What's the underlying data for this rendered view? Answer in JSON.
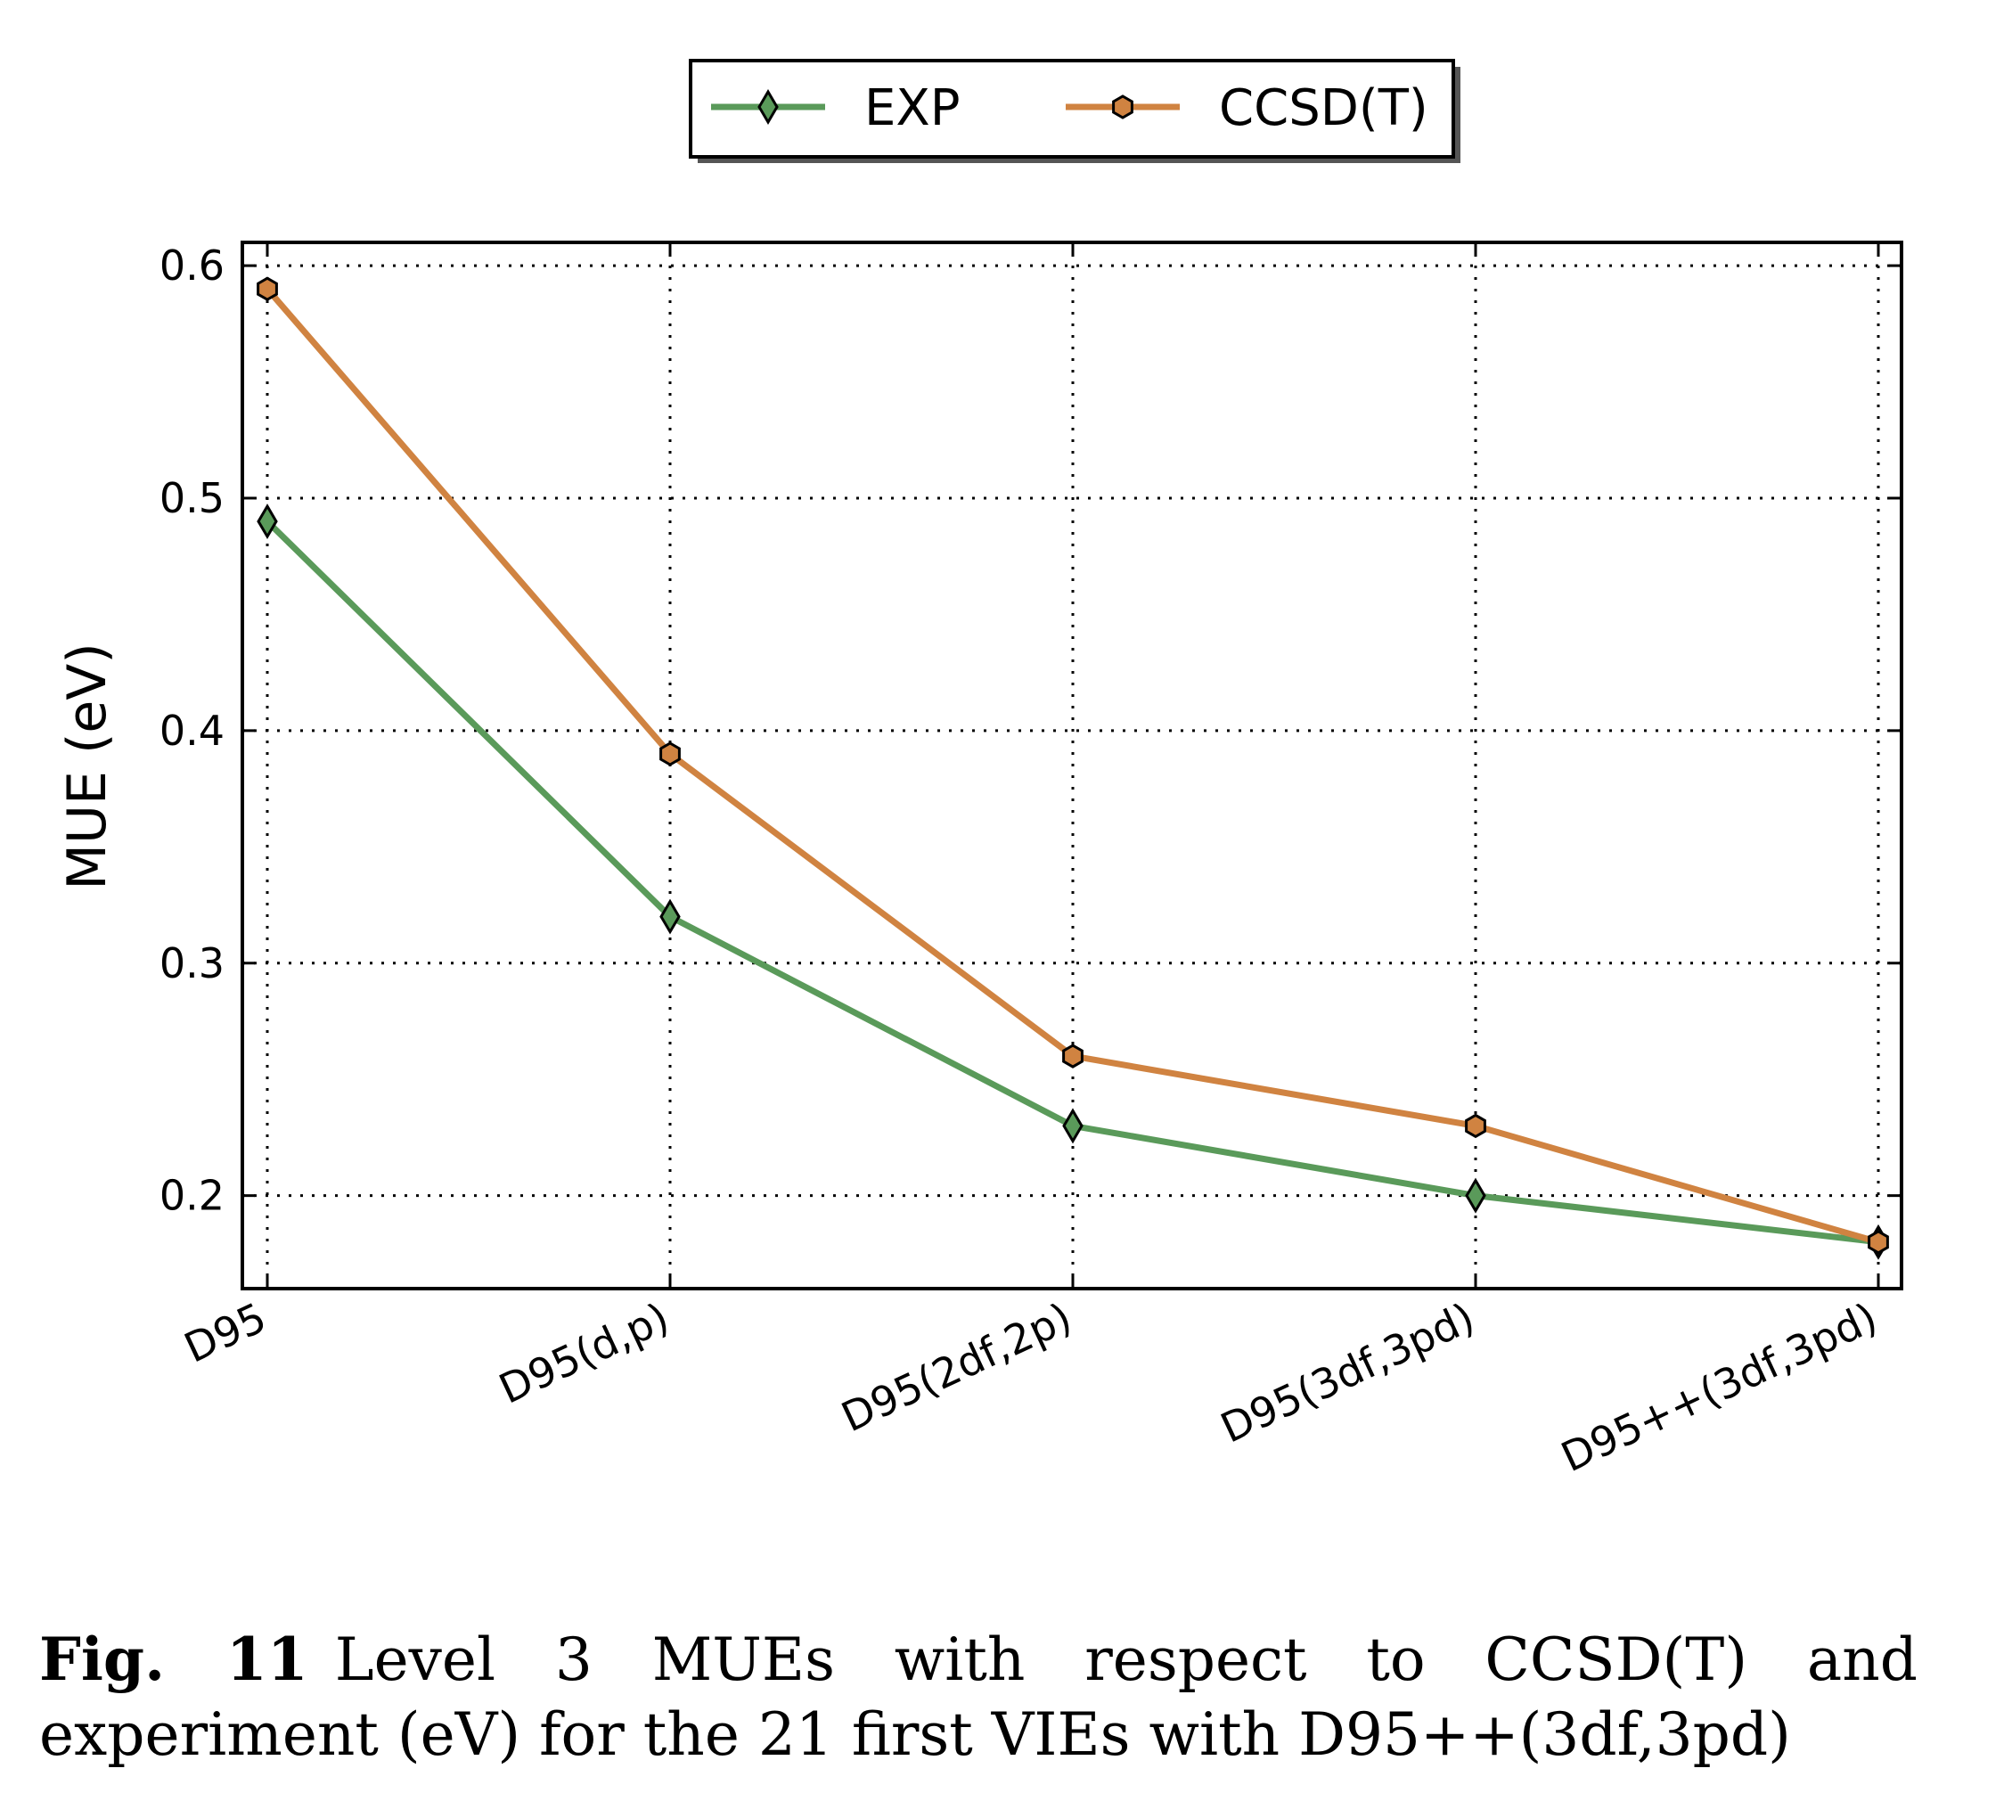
{
  "chart_data": {
    "type": "line",
    "categories": [
      "D95",
      "D95(d,p)",
      "D95(2df,2p)",
      "D95(3df,3pd)",
      "D95++(3df,3pd)"
    ],
    "series": [
      {
        "name": "EXP",
        "values": [
          0.49,
          0.32,
          0.23,
          0.2,
          0.18
        ],
        "color": "#5a9a5a",
        "marker": "diamond"
      },
      {
        "name": "CCSD(T)",
        "values": [
          0.59,
          0.39,
          0.26,
          0.23,
          0.18
        ],
        "color": "#d08341",
        "marker": "hexagon"
      }
    ],
    "ylabel": "MUE (eV)",
    "xlabel": "",
    "ylim": [
      0.16,
      0.61
    ],
    "yticks": [
      "0.2",
      "0.3",
      "0.4",
      "0.5",
      "0.6"
    ],
    "grid": true,
    "legend_position": "top-center"
  },
  "caption": {
    "label": "Fig. 11",
    "text": "Level 3 MUEs with respect to CCSD(T) and experiment (eV) for the 21 first VIEs with D95++(3df,3pd)"
  }
}
